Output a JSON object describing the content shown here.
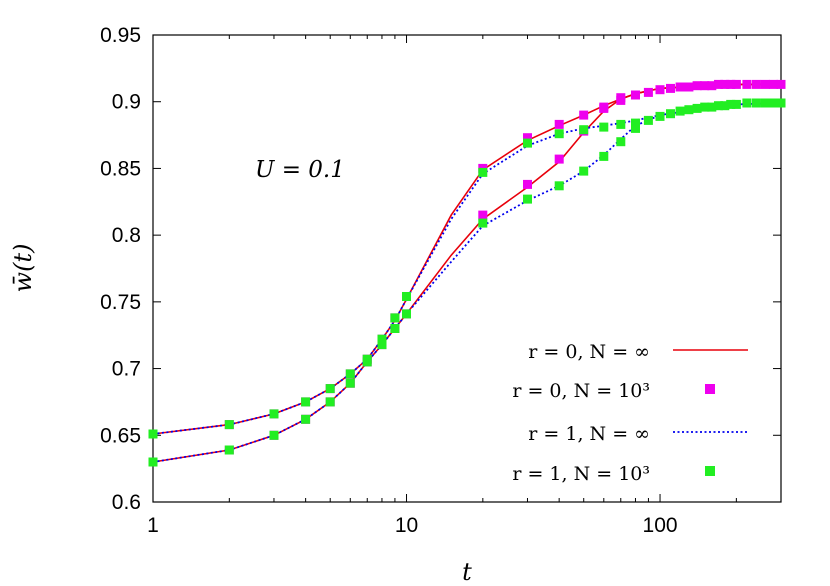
{
  "chart_data": {
    "type": "line",
    "xscale": "log",
    "xlabel": "t",
    "ylabel": "w̄(t)",
    "xlim": [
      1,
      300
    ],
    "ylim": [
      0.6,
      0.95
    ],
    "xticks": [
      "1",
      "10",
      "100"
    ],
    "yticks": [
      "0.6",
      "0.65",
      "0.7",
      "0.75",
      "0.8",
      "0.85",
      "0.9",
      "0.95"
    ],
    "annotation": "U = 0.1",
    "legend_position": "bottom-right",
    "series": [
      {
        "name": "r = 0,  N = ∞",
        "style": "solid-line",
        "color": "#e8000b",
        "curves": [
          {
            "x": [
              1,
              2,
              3,
              4,
              5,
              6,
              7,
              8,
              9,
              10,
              15,
              20,
              30,
              40,
              50,
              60,
              70,
              80,
              100,
              150,
              200,
              300
            ],
            "y": [
              0.651,
              0.658,
              0.666,
              0.675,
              0.685,
              0.696,
              0.707,
              0.722,
              0.736,
              0.752,
              0.815,
              0.849,
              0.871,
              0.882,
              0.89,
              0.897,
              0.902,
              0.906,
              0.91,
              0.912,
              0.913,
              0.913
            ]
          },
          {
            "x": [
              1,
              2,
              3,
              4,
              5,
              6,
              7,
              8,
              9,
              10,
              15,
              20,
              30,
              40,
              50,
              60,
              70,
              80,
              100,
              150,
              200,
              300
            ],
            "y": [
              0.63,
              0.639,
              0.65,
              0.662,
              0.675,
              0.689,
              0.705,
              0.718,
              0.73,
              0.741,
              0.785,
              0.812,
              0.836,
              0.855,
              0.877,
              0.893,
              0.902,
              0.906,
              0.91,
              0.912,
              0.913,
              0.913
            ]
          }
        ]
      },
      {
        "name": "r = 0,  N = 10³",
        "style": "square-markers",
        "color": "#ee00ee",
        "curves": [
          {
            "x": [
              1,
              2,
              3,
              4,
              5,
              6,
              7,
              8,
              9,
              10,
              20,
              30,
              40,
              50,
              60,
              70,
              80,
              90,
              100,
              110,
              120,
              130,
              140,
              150,
              160,
              170,
              180,
              190,
              200,
              220,
              240,
              260,
              280,
              300
            ],
            "y": [
              0.651,
              0.658,
              0.666,
              0.675,
              0.685,
              0.696,
              0.707,
              0.722,
              0.738,
              0.754,
              0.85,
              0.873,
              0.883,
              0.89,
              0.895,
              0.901,
              0.905,
              0.907,
              0.909,
              0.91,
              0.911,
              0.911,
              0.912,
              0.912,
              0.912,
              0.913,
              0.913,
              0.913,
              0.913,
              0.913,
              0.913,
              0.913,
              0.913,
              0.913
            ]
          },
          {
            "x": [
              1,
              2,
              3,
              4,
              5,
              6,
              7,
              8,
              9,
              10,
              20,
              30,
              40,
              50,
              60,
              70
            ],
            "y": [
              0.63,
              0.639,
              0.65,
              0.662,
              0.675,
              0.689,
              0.705,
              0.718,
              0.73,
              0.741,
              0.815,
              0.838,
              0.857,
              0.878,
              0.896,
              0.903
            ]
          }
        ]
      },
      {
        "name": "r = 1,  N = ∞",
        "style": "dotted-line",
        "color": "#0000ee",
        "curves": [
          {
            "x": [
              1,
              2,
              3,
              4,
              5,
              6,
              7,
              8,
              9,
              10,
              15,
              20,
              30,
              40,
              50,
              60,
              70,
              80,
              100,
              150,
              200,
              300
            ],
            "y": [
              0.651,
              0.658,
              0.666,
              0.675,
              0.685,
              0.696,
              0.707,
              0.722,
              0.736,
              0.752,
              0.812,
              0.846,
              0.867,
              0.876,
              0.88,
              0.882,
              0.884,
              0.886,
              0.89,
              0.895,
              0.898,
              0.899
            ]
          },
          {
            "x": [
              1,
              2,
              3,
              4,
              5,
              6,
              7,
              8,
              9,
              10,
              15,
              20,
              30,
              40,
              50,
              60,
              70,
              80,
              100,
              150,
              200,
              300
            ],
            "y": [
              0.63,
              0.639,
              0.65,
              0.662,
              0.675,
              0.689,
              0.705,
              0.718,
              0.73,
              0.741,
              0.78,
              0.807,
              0.826,
              0.837,
              0.848,
              0.86,
              0.872,
              0.882,
              0.89,
              0.895,
              0.898,
              0.899
            ]
          }
        ]
      },
      {
        "name": "r = 1,  N = 10³",
        "style": "square-markers",
        "color": "#22ee22",
        "curves": [
          {
            "x": [
              1,
              2,
              3,
              4,
              5,
              6,
              7,
              8,
              9,
              10,
              20,
              30,
              40,
              50,
              60,
              70,
              80,
              90,
              100,
              110,
              120,
              130,
              140,
              150,
              160,
              170,
              180,
              190,
              200,
              220,
              240,
              260,
              280,
              300
            ],
            "y": [
              0.651,
              0.658,
              0.666,
              0.675,
              0.685,
              0.696,
              0.707,
              0.722,
              0.738,
              0.754,
              0.847,
              0.869,
              0.876,
              0.879,
              0.881,
              0.883,
              0.884,
              0.886,
              0.889,
              0.891,
              0.893,
              0.894,
              0.895,
              0.896,
              0.896,
              0.897,
              0.897,
              0.898,
              0.898,
              0.899,
              0.899,
              0.899,
              0.899,
              0.899
            ]
          },
          {
            "x": [
              1,
              2,
              3,
              4,
              5,
              6,
              7,
              8,
              9,
              10,
              20,
              30,
              40,
              50,
              60,
              70,
              80
            ],
            "y": [
              0.63,
              0.639,
              0.65,
              0.662,
              0.675,
              0.689,
              0.705,
              0.718,
              0.73,
              0.741,
              0.809,
              0.827,
              0.837,
              0.848,
              0.859,
              0.87,
              0.88
            ]
          }
        ]
      }
    ]
  }
}
